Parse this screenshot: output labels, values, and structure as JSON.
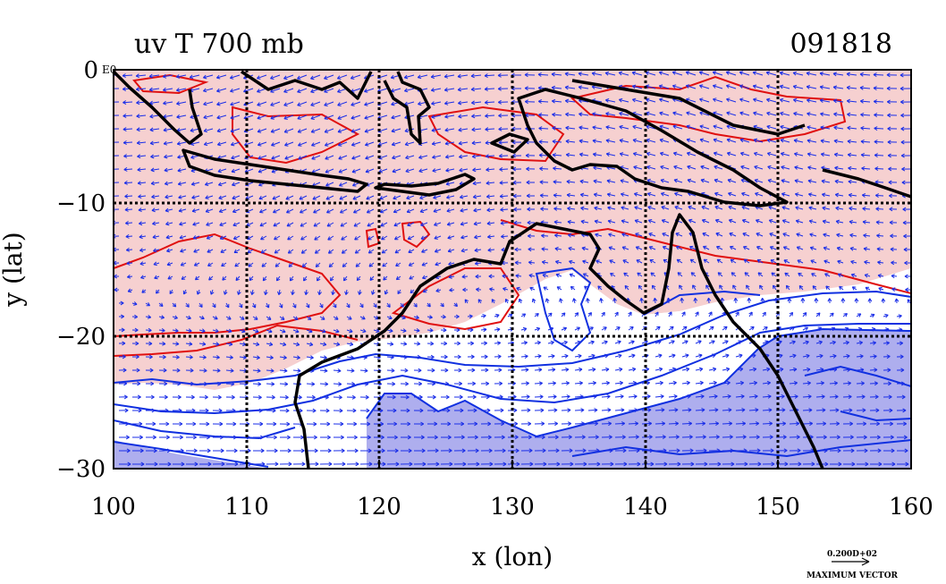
{
  "header": {
    "title": "uv T 700 mb",
    "date_code": "091818"
  },
  "axes": {
    "xlabel": "x (lon)",
    "ylabel": "y (lat)",
    "x_ticks": [
      "100",
      "110",
      "120",
      "130",
      "140",
      "150",
      "160"
    ],
    "y_ticks": [
      "0",
      "−10",
      "−20",
      "−30"
    ],
    "corner_label": "E0"
  },
  "vector_reference": {
    "magnitude": "0.200D+02",
    "label": "MAXIMUM VECTOR"
  },
  "map": {
    "type": "contour-vector-map",
    "xlim": [
      100,
      160
    ],
    "ylim": [
      -30,
      0
    ],
    "grid_lon": [
      110,
      120,
      130,
      140,
      150
    ],
    "grid_lat": [
      -10,
      -20
    ],
    "colors": {
      "warm_fill": "#f6d0d0",
      "cool_fill": "#aeaeee",
      "warm_contour": "#e01010",
      "cool_contour": "#1030e0",
      "vectors": "#1a2ee8",
      "coastline": "#000000"
    }
  }
}
